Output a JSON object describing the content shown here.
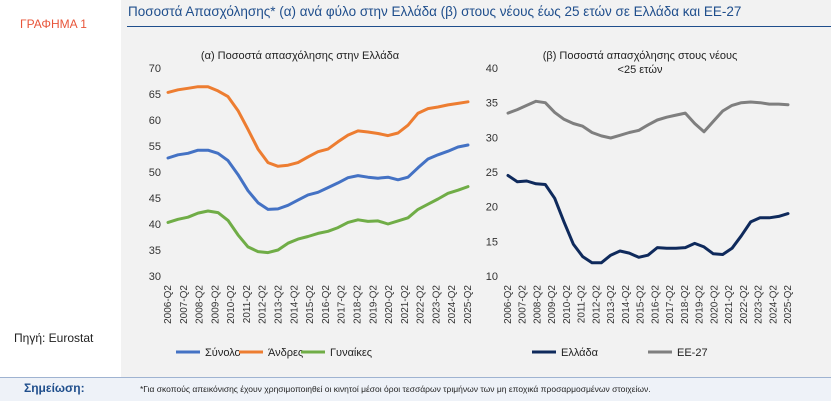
{
  "left": {
    "graph_label": "ΓΡΑΦΗΜΑ 1",
    "source": "Πηγή: Eurostat"
  },
  "title": "Ποσοστά Απασχόλησης* (α) ανά φύλο στην Ελλάδα (β) στους νέους έως 25 ετών σε Ελλάδα και ΕΕ-27",
  "note": {
    "label": "Σημείωση:",
    "text": "*Για σκοπούς απεικόνισης έχουν χρησιμοποιηθεί οι κινητοί μέσοι όροι τεσσάρων τριμήνων των μη εποχικά προσαρμοσμένων στοιχείων."
  },
  "colors": {
    "total": "#4472c4",
    "men": "#ed7d31",
    "women": "#70ad47",
    "greece": "#0f2a5c",
    "eu27": "#7f7f7f",
    "accent": "#e8553a",
    "title": "#1f4e8c"
  },
  "chart_data": [
    {
      "type": "line",
      "title": "(α) Ποσοστά απασχόλησης στην Ελλάδα",
      "ylim": [
        30,
        70
      ],
      "yticks": [
        70,
        65,
        60,
        55,
        50,
        45,
        40,
        35,
        30
      ],
      "grid": false,
      "legend": "bottom",
      "x_labels": [
        "2006-Q2",
        "2007-Q2",
        "2008-Q2",
        "2009-Q2",
        "2010-Q2",
        "2011-Q2",
        "2012-Q2",
        "2013-Q2",
        "2014-Q2",
        "2015-Q2",
        "2016-Q2",
        "2017-Q2",
        "2018-Q2",
        "2019-Q2",
        "2020-Q2",
        "2021-Q2",
        "2022-Q2",
        "2023-Q2",
        "2024-Q2",
        "2025-Q2"
      ],
      "series": [
        {
          "name": "Σύνολο",
          "color": "#4472c4",
          "values": [
            52.7,
            53.3,
            53.6,
            54.2,
            54.2,
            53.6,
            52.2,
            49.5,
            46.4,
            44.1,
            42.8,
            42.9,
            43.6,
            44.6,
            45.6,
            46.1,
            47.0,
            47.9,
            48.9,
            49.3,
            49.0,
            48.8,
            49.0,
            48.5,
            49.0,
            50.8,
            52.5,
            53.3,
            54.0,
            54.8,
            55.2
          ]
        },
        {
          "name": "Άνδρες",
          "color": "#ed7d31",
          "values": [
            65.3,
            65.8,
            66.1,
            66.4,
            66.4,
            65.6,
            64.5,
            61.8,
            58.2,
            54.4,
            51.8,
            51.1,
            51.3,
            51.8,
            52.9,
            53.9,
            54.4,
            55.8,
            57.1,
            57.9,
            57.7,
            57.4,
            57.0,
            57.5,
            59.0,
            61.3,
            62.2,
            62.5,
            62.9,
            63.2,
            63.5
          ]
        },
        {
          "name": "Γυναίκες",
          "color": "#70ad47",
          "values": [
            40.3,
            40.9,
            41.3,
            42.1,
            42.5,
            42.2,
            40.7,
            37.9,
            35.6,
            34.7,
            34.5,
            35.0,
            36.3,
            37.1,
            37.6,
            38.2,
            38.6,
            39.3,
            40.3,
            40.8,
            40.5,
            40.6,
            40.0,
            40.6,
            41.2,
            42.8,
            43.8,
            44.8,
            45.9,
            46.5,
            47.2
          ]
        }
      ]
    },
    {
      "type": "line",
      "title": "(β) Ποσοστά απασχόλησης στους νέους <25 ετών",
      "ylim": [
        10,
        40
      ],
      "yticks": [
        40,
        35,
        30,
        25,
        20,
        15,
        10
      ],
      "grid": false,
      "legend": "bottom",
      "x_labels": [
        "2006-Q2",
        "2007-Q2",
        "2008-Q2",
        "2009-Q2",
        "2010-Q2",
        "2011-Q2",
        "2012-Q2",
        "2013-Q2",
        "2014-Q2",
        "2015-Q2",
        "2016-Q2",
        "2017-Q2",
        "2018-Q2",
        "2019-Q2",
        "2020-Q2",
        "2021-Q2",
        "2022-Q2",
        "2023-Q2",
        "2024-Q2",
        "2025-Q2"
      ],
      "series": [
        {
          "name": "Ελλάδα",
          "color": "#0f2a5c",
          "values": [
            24.5,
            23.6,
            23.7,
            23.3,
            23.2,
            21.2,
            17.8,
            14.6,
            12.8,
            11.9,
            11.9,
            13.0,
            13.6,
            13.3,
            12.7,
            13.0,
            14.1,
            14.0,
            14.0,
            14.1,
            14.7,
            14.2,
            13.2,
            13.1,
            14.0,
            15.8,
            17.8,
            18.4,
            18.4,
            18.6,
            19.0
          ]
        },
        {
          "name": "ΕΕ-27",
          "color": "#7f7f7f",
          "values": [
            33.5,
            34.0,
            34.6,
            35.2,
            35.0,
            33.6,
            32.6,
            32.0,
            31.6,
            30.7,
            30.2,
            29.9,
            30.3,
            30.7,
            31.0,
            31.8,
            32.5,
            32.9,
            33.2,
            33.5,
            32.0,
            30.8,
            32.3,
            33.8,
            34.6,
            35.0,
            35.1,
            35.0,
            34.8,
            34.8,
            34.7
          ]
        }
      ]
    }
  ]
}
